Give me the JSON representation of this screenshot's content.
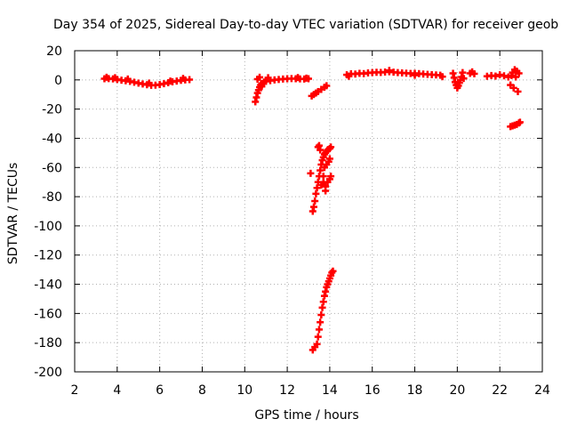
{
  "chart_data": {
    "type": "scatter",
    "title": "Day 354 of 2025, Sidereal Day-to-day VTEC variation (SDTVAR) for receiver geob",
    "xlabel": "GPS time / hours",
    "ylabel": "SDTVAR / TECUs",
    "xlim": [
      2,
      24
    ],
    "ylim": [
      -200,
      20
    ],
    "xticks": [
      2,
      4,
      6,
      8,
      10,
      12,
      14,
      16,
      18,
      20,
      22,
      24
    ],
    "yticks": [
      20,
      0,
      -20,
      -40,
      -60,
      -80,
      -100,
      -120,
      -140,
      -160,
      -180,
      -200
    ],
    "grid": true,
    "marker": "plus",
    "series": [
      {
        "name": "SDTVAR",
        "color": "#ff0000",
        "points": [
          [
            3.4,
            0.8
          ],
          [
            3.6,
            0.9
          ],
          [
            3.8,
            0.7
          ],
          [
            4.0,
            0.3
          ],
          [
            4.2,
            -0.2
          ],
          [
            4.4,
            -0.6
          ],
          [
            4.6,
            -1.0
          ],
          [
            4.8,
            -1.6
          ],
          [
            5.0,
            -2.2
          ],
          [
            5.2,
            -2.8
          ],
          [
            5.4,
            -3.3
          ],
          [
            5.6,
            -3.7
          ],
          [
            5.8,
            -3.6
          ],
          [
            6.0,
            -3.2
          ],
          [
            6.2,
            -2.6
          ],
          [
            6.4,
            -1.9
          ],
          [
            6.6,
            -1.3
          ],
          [
            6.8,
            -0.8
          ],
          [
            7.0,
            -0.3
          ],
          [
            7.2,
            0.0
          ],
          [
            7.4,
            0.2
          ],
          [
            3.5,
            1.8
          ],
          [
            3.9,
            1.5
          ],
          [
            4.5,
            0.6
          ],
          [
            5.5,
            -2.2
          ],
          [
            6.5,
            -0.8
          ],
          [
            7.1,
            1.0
          ],
          [
            10.5,
            -15
          ],
          [
            10.55,
            -12
          ],
          [
            10.6,
            -9
          ],
          [
            10.65,
            -7
          ],
          [
            10.7,
            -5
          ],
          [
            10.75,
            -3.5
          ],
          [
            10.8,
            -2.5
          ],
          [
            10.9,
            -1.5
          ],
          [
            11.0,
            -1.0
          ],
          [
            11.2,
            -0.5
          ],
          [
            11.4,
            0.0
          ],
          [
            11.6,
            0.3
          ],
          [
            11.8,
            0.6
          ],
          [
            12.0,
            0.8
          ],
          [
            12.2,
            0.9
          ],
          [
            12.4,
            0.8
          ],
          [
            12.6,
            0.7
          ],
          [
            12.8,
            0.6
          ],
          [
            13.0,
            0.8
          ],
          [
            10.6,
            0.5
          ],
          [
            10.7,
            1.8
          ],
          [
            10.8,
            -4.5
          ],
          [
            11.1,
            1.5
          ],
          [
            12.5,
            1.6
          ],
          [
            12.9,
            1.2
          ],
          [
            13.15,
            -11
          ],
          [
            13.25,
            -10
          ],
          [
            13.35,
            -9
          ],
          [
            13.45,
            -8
          ],
          [
            13.6,
            -6.5
          ],
          [
            13.75,
            -5
          ],
          [
            13.85,
            -4
          ],
          [
            13.1,
            -64
          ],
          [
            13.2,
            -90
          ],
          [
            13.25,
            -87
          ],
          [
            13.3,
            -83
          ],
          [
            13.35,
            -78
          ],
          [
            13.4,
            -74
          ],
          [
            13.45,
            -70
          ],
          [
            13.5,
            -66
          ],
          [
            13.55,
            -62
          ],
          [
            13.6,
            -58
          ],
          [
            13.65,
            -55
          ],
          [
            13.7,
            -53
          ],
          [
            13.75,
            -51
          ],
          [
            13.8,
            -50
          ],
          [
            13.85,
            -49
          ],
          [
            13.9,
            -48
          ],
          [
            14.0,
            -47
          ],
          [
            14.05,
            -46
          ],
          [
            13.45,
            -46
          ],
          [
            13.5,
            -45
          ],
          [
            13.55,
            -48
          ],
          [
            13.6,
            -72
          ],
          [
            13.7,
            -70
          ],
          [
            13.8,
            -73
          ],
          [
            13.9,
            -70
          ],
          [
            14.0,
            -68
          ],
          [
            14.05,
            -66
          ],
          [
            13.75,
            -60
          ],
          [
            13.85,
            -58
          ],
          [
            13.95,
            -56
          ],
          [
            14.0,
            -54
          ],
          [
            13.8,
            -76
          ],
          [
            13.7,
            -66
          ],
          [
            13.2,
            -185
          ],
          [
            13.3,
            -183
          ],
          [
            13.4,
            -181
          ],
          [
            13.45,
            -176
          ],
          [
            13.5,
            -171
          ],
          [
            13.55,
            -166
          ],
          [
            13.6,
            -161
          ],
          [
            13.65,
            -156
          ],
          [
            13.7,
            -152
          ],
          [
            13.75,
            -148
          ],
          [
            13.8,
            -145
          ],
          [
            13.85,
            -142
          ],
          [
            13.9,
            -140
          ],
          [
            13.95,
            -138
          ],
          [
            14.0,
            -136
          ],
          [
            14.05,
            -134
          ],
          [
            14.1,
            -132
          ],
          [
            14.15,
            -131
          ],
          [
            14.8,
            3.5
          ],
          [
            15.0,
            4.2
          ],
          [
            15.2,
            4.0
          ],
          [
            15.4,
            4.5
          ],
          [
            15.6,
            4.3
          ],
          [
            15.8,
            4.8
          ],
          [
            16.0,
            5.0
          ],
          [
            16.2,
            5.2
          ],
          [
            16.4,
            5.1
          ],
          [
            16.6,
            5.4
          ],
          [
            16.8,
            5.6
          ],
          [
            17.0,
            5.3
          ],
          [
            17.2,
            5.0
          ],
          [
            17.4,
            4.8
          ],
          [
            17.6,
            4.6
          ],
          [
            17.8,
            4.4
          ],
          [
            18.0,
            4.5
          ],
          [
            18.2,
            4.3
          ],
          [
            18.4,
            4.0
          ],
          [
            18.6,
            3.8
          ],
          [
            18.8,
            3.6
          ],
          [
            19.0,
            3.4
          ],
          [
            19.2,
            3.2
          ],
          [
            14.9,
            2.5
          ],
          [
            16.8,
            6.5
          ],
          [
            18.0,
            3.2
          ],
          [
            19.3,
            2.2
          ],
          [
            19.8,
            4.5
          ],
          [
            19.85,
            1.5
          ],
          [
            19.9,
            -1.5
          ],
          [
            19.95,
            -3.5
          ],
          [
            20.0,
            -5.5
          ],
          [
            20.05,
            -4
          ],
          [
            20.1,
            -2
          ],
          [
            20.15,
            0
          ],
          [
            20.2,
            2
          ],
          [
            20.25,
            5
          ],
          [
            20.3,
            1
          ],
          [
            20.6,
            4.5
          ],
          [
            20.7,
            5.5
          ],
          [
            20.8,
            4.2
          ],
          [
            21.4,
            2.5
          ],
          [
            21.6,
            3.0
          ],
          [
            21.8,
            2.6
          ],
          [
            22.0,
            3.5
          ],
          [
            22.2,
            2.8
          ],
          [
            22.4,
            2.0
          ],
          [
            22.5,
            -3.5
          ],
          [
            22.55,
            3.0
          ],
          [
            22.6,
            5.0
          ],
          [
            22.65,
            -5.5
          ],
          [
            22.7,
            7.0
          ],
          [
            22.75,
            2.0
          ],
          [
            22.8,
            6.0
          ],
          [
            22.85,
            -8.0
          ],
          [
            22.9,
            4.5
          ],
          [
            22.5,
            -32
          ],
          [
            22.6,
            -31.5
          ],
          [
            22.7,
            -31
          ],
          [
            22.8,
            -30.5
          ],
          [
            22.9,
            -29.5
          ],
          [
            22.95,
            -29
          ]
        ]
      }
    ]
  }
}
